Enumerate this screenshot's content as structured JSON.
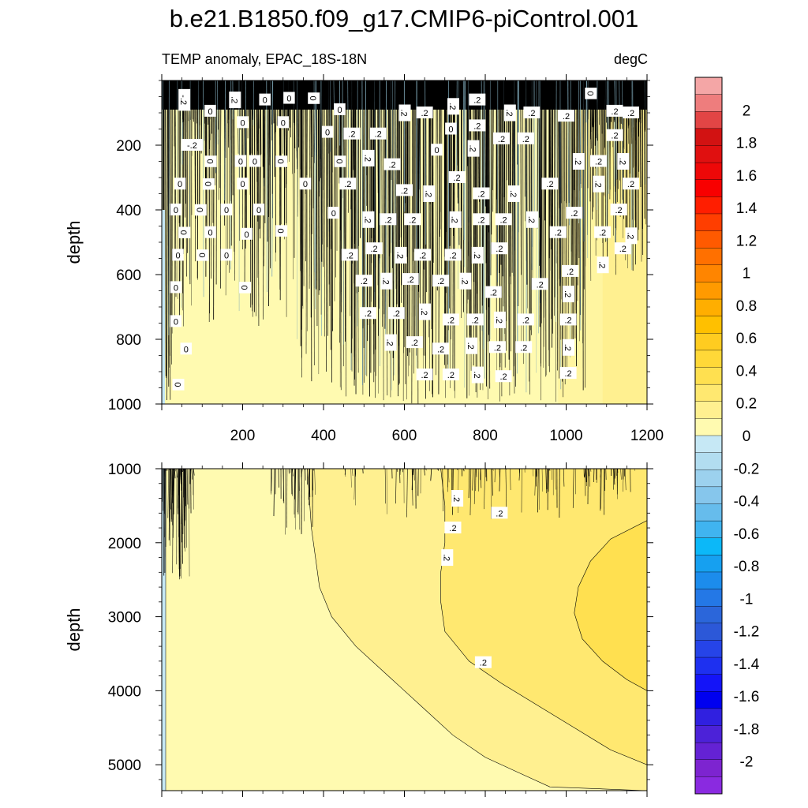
{
  "chart_data": {
    "type": "heatmap",
    "title": "b.e21.B1850.f09_g17.CMIP6-piControl.001",
    "subtitle_left": "TEMP anomaly, EPAC_18S-18N",
    "subtitle_right": "degC",
    "panels": [
      {
        "name": "upper",
        "xlabel": "",
        "ylabel": "depth",
        "xlim": [
          0,
          1200
        ],
        "ylim": [
          1000,
          0
        ],
        "x_ticks": [
          200,
          400,
          600,
          800,
          1000,
          1200
        ],
        "y_ticks": [
          200,
          400,
          600,
          800,
          1000
        ],
        "contour_labels": [
          {
            "text": "-.2",
            "x": 55,
            "y": 60
          },
          {
            "text": "-.2",
            "x": 75,
            "y": 200
          },
          {
            "text": "0",
            "x": 120,
            "y": 95
          },
          {
            "text": ".2",
            "x": 180,
            "y": 60
          },
          {
            "text": "0",
            "x": 255,
            "y": 60
          },
          {
            "text": "0",
            "x": 315,
            "y": 55
          },
          {
            "text": "0",
            "x": 375,
            "y": 55
          },
          {
            "text": "0",
            "x": 200,
            "y": 130
          },
          {
            "text": "0",
            "x": 300,
            "y": 130
          },
          {
            "text": "0",
            "x": 120,
            "y": 250
          },
          {
            "text": "0",
            "x": 195,
            "y": 250
          },
          {
            "text": "0",
            "x": 230,
            "y": 250
          },
          {
            "text": "0",
            "x": 295,
            "y": 250
          },
          {
            "text": "0",
            "x": 440,
            "y": 90
          },
          {
            "text": "0",
            "x": 410,
            "y": 160
          },
          {
            "text": "0",
            "x": 440,
            "y": 250
          },
          {
            "text": "0",
            "x": 355,
            "y": 320
          },
          {
            "text": "0",
            "x": 45,
            "y": 320
          },
          {
            "text": "0",
            "x": 115,
            "y": 320
          },
          {
            "text": "0",
            "x": 200,
            "y": 320
          },
          {
            "text": "0",
            "x": 35,
            "y": 400
          },
          {
            "text": "0",
            "x": 95,
            "y": 400
          },
          {
            "text": "0",
            "x": 160,
            "y": 400
          },
          {
            "text": "0",
            "x": 240,
            "y": 400
          },
          {
            "text": "0",
            "x": 55,
            "y": 470
          },
          {
            "text": "0",
            "x": 120,
            "y": 470
          },
          {
            "text": "0",
            "x": 210,
            "y": 475
          },
          {
            "text": "0",
            "x": 295,
            "y": 465
          },
          {
            "text": "0",
            "x": 425,
            "y": 410
          },
          {
            "text": "0",
            "x": 40,
            "y": 540
          },
          {
            "text": "0",
            "x": 100,
            "y": 540
          },
          {
            "text": "0",
            "x": 160,
            "y": 540
          },
          {
            "text": "0",
            "x": 35,
            "y": 640
          },
          {
            "text": "0",
            "x": 205,
            "y": 640
          },
          {
            "text": "0",
            "x": 35,
            "y": 745
          },
          {
            "text": "0",
            "x": 60,
            "y": 830
          },
          {
            "text": "0",
            "x": 40,
            "y": 940
          },
          {
            "text": ".2",
            "x": 470,
            "y": 165
          },
          {
            "text": ".2",
            "x": 535,
            "y": 165
          },
          {
            "text": ".2",
            "x": 600,
            "y": 100
          },
          {
            "text": ".2",
            "x": 650,
            "y": 100
          },
          {
            "text": "0",
            "x": 715,
            "y": 150
          },
          {
            "text": ".2",
            "x": 720,
            "y": 80
          },
          {
            "text": ".2",
            "x": 780,
            "y": 60
          },
          {
            "text": ".2",
            "x": 780,
            "y": 140
          },
          {
            "text": ".2",
            "x": 860,
            "y": 100
          },
          {
            "text": ".2",
            "x": 915,
            "y": 100
          },
          {
            "text": ".2",
            "x": 1000,
            "y": 110
          },
          {
            "text": "0",
            "x": 1060,
            "y": 40
          },
          {
            "text": ".2",
            "x": 1120,
            "y": 95
          },
          {
            "text": ".2",
            "x": 1160,
            "y": 100
          },
          {
            "text": ".2",
            "x": 510,
            "y": 240
          },
          {
            "text": ".2",
            "x": 570,
            "y": 260
          },
          {
            "text": "0",
            "x": 680,
            "y": 215
          },
          {
            "text": ".2",
            "x": 770,
            "y": 210
          },
          {
            "text": ".2",
            "x": 840,
            "y": 180
          },
          {
            "text": ".2",
            "x": 900,
            "y": 180
          },
          {
            "text": ".2",
            "x": 1030,
            "y": 250
          },
          {
            "text": ".2",
            "x": 1080,
            "y": 250
          },
          {
            "text": ".2",
            "x": 1120,
            "y": 170
          },
          {
            "text": ".2",
            "x": 1140,
            "y": 250
          },
          {
            "text": ".2",
            "x": 460,
            "y": 320
          },
          {
            "text": ".2",
            "x": 600,
            "y": 340
          },
          {
            "text": ".2",
            "x": 660,
            "y": 350
          },
          {
            "text": ".2",
            "x": 730,
            "y": 300
          },
          {
            "text": ".2",
            "x": 790,
            "y": 350
          },
          {
            "text": ".2",
            "x": 870,
            "y": 350
          },
          {
            "text": ".2",
            "x": 960,
            "y": 320
          },
          {
            "text": ".2",
            "x": 1020,
            "y": 410
          },
          {
            "text": ".2",
            "x": 1080,
            "y": 320
          },
          {
            "text": ".2",
            "x": 1130,
            "y": 400
          },
          {
            "text": ".2",
            "x": 1160,
            "y": 320
          },
          {
            "text": ".2",
            "x": 510,
            "y": 430
          },
          {
            "text": ".2",
            "x": 560,
            "y": 430
          },
          {
            "text": ".2",
            "x": 620,
            "y": 430
          },
          {
            "text": ".2",
            "x": 725,
            "y": 430
          },
          {
            "text": ".2",
            "x": 790,
            "y": 430
          },
          {
            "text": ".2",
            "x": 845,
            "y": 430
          },
          {
            "text": ".2",
            "x": 915,
            "y": 430
          },
          {
            "text": ".2",
            "x": 980,
            "y": 470
          },
          {
            "text": ".2",
            "x": 1090,
            "y": 470
          },
          {
            "text": ".2",
            "x": 1160,
            "y": 480
          },
          {
            "text": ".2",
            "x": 465,
            "y": 540
          },
          {
            "text": ".2",
            "x": 525,
            "y": 520
          },
          {
            "text": ".2",
            "x": 590,
            "y": 540
          },
          {
            "text": ".2",
            "x": 645,
            "y": 540
          },
          {
            "text": ".2",
            "x": 720,
            "y": 540
          },
          {
            "text": ".2",
            "x": 780,
            "y": 540
          },
          {
            "text": ".2",
            "x": 835,
            "y": 520
          },
          {
            "text": ".2",
            "x": 1010,
            "y": 590
          },
          {
            "text": ".2",
            "x": 1090,
            "y": 570
          },
          {
            "text": ".2",
            "x": 1140,
            "y": 520
          },
          {
            "text": ".2",
            "x": 500,
            "y": 620
          },
          {
            "text": ".2",
            "x": 555,
            "y": 620
          },
          {
            "text": ".2",
            "x": 615,
            "y": 615
          },
          {
            "text": ".2",
            "x": 690,
            "y": 620
          },
          {
            "text": ".2",
            "x": 750,
            "y": 620
          },
          {
            "text": ".2",
            "x": 820,
            "y": 655
          },
          {
            "text": ".2",
            "x": 935,
            "y": 630
          },
          {
            "text": ".2",
            "x": 1005,
            "y": 660
          },
          {
            "text": ".2",
            "x": 510,
            "y": 720
          },
          {
            "text": ".2",
            "x": 580,
            "y": 720
          },
          {
            "text": ".2",
            "x": 650,
            "y": 715
          },
          {
            "text": ".2",
            "x": 715,
            "y": 740
          },
          {
            "text": ".2",
            "x": 775,
            "y": 740
          },
          {
            "text": ".2",
            "x": 835,
            "y": 740
          },
          {
            "text": ".2",
            "x": 900,
            "y": 740
          },
          {
            "text": ".2",
            "x": 1005,
            "y": 740
          },
          {
            "text": ".2",
            "x": 565,
            "y": 810
          },
          {
            "text": ".2",
            "x": 625,
            "y": 810
          },
          {
            "text": ".2",
            "x": 690,
            "y": 830
          },
          {
            "text": ".2",
            "x": 765,
            "y": 820
          },
          {
            "text": ".2",
            "x": 830,
            "y": 825
          },
          {
            "text": ".2",
            "x": 895,
            "y": 825
          },
          {
            "text": ".2",
            "x": 1005,
            "y": 825
          },
          {
            "text": ".2",
            "x": 650,
            "y": 910
          },
          {
            "text": ".2",
            "x": 715,
            "y": 910
          },
          {
            "text": ".2",
            "x": 780,
            "y": 910
          },
          {
            "text": ".2",
            "x": 845,
            "y": 915
          },
          {
            "text": ".2",
            "x": 1005,
            "y": 905
          }
        ]
      },
      {
        "name": "lower",
        "xlabel": "",
        "ylabel": "depth",
        "xlim": [
          0,
          1200
        ],
        "ylim": [
          5350,
          1000
        ],
        "x_ticks": [],
        "y_ticks": [
          1000,
          2000,
          3000,
          4000,
          5000
        ],
        "contour_labels": [
          {
            "text": ".2",
            "x": 730,
            "y": 1400
          },
          {
            "text": ".2",
            "x": 835,
            "y": 1600
          },
          {
            "text": ".2",
            "x": 720,
            "y": 1800
          },
          {
            "text": ".2",
            "x": 705,
            "y": 2200
          },
          {
            "text": ".2",
            "x": 795,
            "y": 3620
          }
        ]
      }
    ],
    "colorbar": {
      "labels": [
        "2",
        "1.8",
        "1.6",
        "1.4",
        "1.2",
        "1",
        "0.8",
        "0.6",
        "0.4",
        "0.2",
        "0",
        "-0.2",
        "-0.4",
        "-0.6",
        "-0.8",
        "-1",
        "-1.2",
        "-1.4",
        "-1.6",
        "-1.8",
        "-2"
      ],
      "colors": [
        "#F4A6A6",
        "#EE7D7D",
        "#E24545",
        "#D21212",
        "#E01010",
        "#EE0808",
        "#F80000",
        "#FF1E00",
        "#FF3E00",
        "#FF5A00",
        "#FF7000",
        "#FF8500",
        "#FF9A00",
        "#FFAE00",
        "#FFC000",
        "#FFCC20",
        "#FFD838",
        "#FFE050",
        "#FFE870",
        "#FFF090",
        "#FFFAB0",
        "#C6E8F5",
        "#B2DDF0",
        "#9CD1EE",
        "#86C6EC",
        "#66BCEC",
        "#40B4F0",
        "#0CB8F8",
        "#16A0F0",
        "#1C8CEC",
        "#2478E6",
        "#2B66DA",
        "#2C58D8",
        "#2644E8",
        "#1E30F0",
        "#1414F8",
        "#0000F0",
        "#3020E0",
        "#4C22D8",
        "#6422D4",
        "#7D24D0",
        "#8A2AE0"
      ]
    },
    "fill_colors": {
      "warm1": "#FFFAB0",
      "warm2": "#FFF090",
      "warm3": "#FFE870",
      "warm4": "#FFE050",
      "cold1": "#C6E8F5",
      "noise": "#000000"
    }
  }
}
